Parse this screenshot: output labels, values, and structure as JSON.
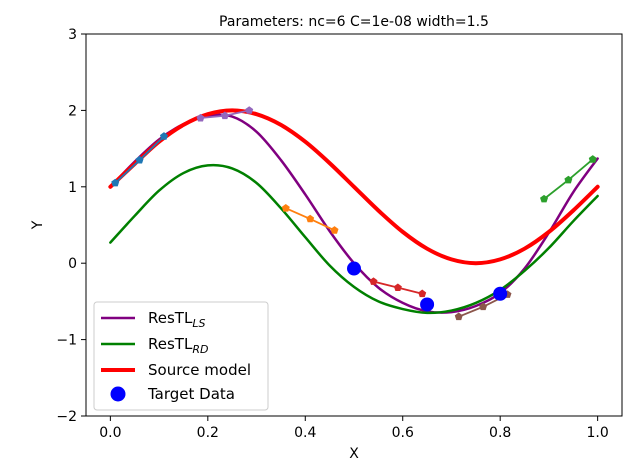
{
  "chart_data": {
    "type": "line",
    "title": "Parameters: nc=6 C=1e-08 width=1.5",
    "xlabel": "X",
    "ylabel": "Y",
    "xlim": [
      -0.05,
      1.05
    ],
    "ylim": [
      -2,
      3
    ],
    "xticks": [
      0.0,
      0.2,
      0.4,
      0.6,
      0.8,
      1.0
    ],
    "xtick_labels": [
      "0.0",
      "0.2",
      "0.4",
      "0.6",
      "0.8",
      "1.0"
    ],
    "yticks": [
      -2,
      -1,
      0,
      1,
      2,
      3
    ],
    "ytick_labels": [
      "−2",
      "−1",
      "0",
      "1",
      "2",
      "3"
    ],
    "legend_position": "lower-left",
    "series": [
      {
        "name": "ResTL_LS",
        "legend_main": "ResTL",
        "legend_sub": "LS",
        "color": "#800080",
        "x": [
          0.0,
          0.05,
          0.1,
          0.15,
          0.2,
          0.25,
          0.3,
          0.35,
          0.4,
          0.45,
          0.5,
          0.55,
          0.6,
          0.65,
          0.7,
          0.75,
          0.8,
          0.85,
          0.9,
          0.95,
          1.0
        ],
        "y": [
          1.0,
          1.33,
          1.62,
          1.82,
          1.93,
          1.92,
          1.72,
          1.35,
          0.9,
          0.42,
          0.0,
          -0.32,
          -0.52,
          -0.63,
          -0.64,
          -0.56,
          -0.39,
          -0.07,
          0.4,
          0.93,
          1.37
        ]
      },
      {
        "name": "ResTL_RD",
        "legend_main": "ResTL",
        "legend_sub": "RD",
        "color": "#008000",
        "x": [
          0.0,
          0.05,
          0.1,
          0.15,
          0.2,
          0.25,
          0.3,
          0.35,
          0.4,
          0.45,
          0.5,
          0.55,
          0.6,
          0.65,
          0.7,
          0.75,
          0.8,
          0.85,
          0.9,
          0.95,
          1.0
        ],
        "y": [
          0.27,
          0.62,
          0.95,
          1.18,
          1.28,
          1.24,
          1.05,
          0.72,
          0.34,
          -0.03,
          -0.31,
          -0.5,
          -0.6,
          -0.65,
          -0.62,
          -0.52,
          -0.35,
          -0.1,
          0.2,
          0.55,
          0.88
        ]
      },
      {
        "name": "Source model",
        "legend_main": "Source model",
        "legend_sub": "",
        "color": "#ff0000",
        "x": [
          0.0,
          0.05,
          0.1,
          0.15,
          0.2,
          0.25,
          0.3,
          0.35,
          0.4,
          0.45,
          0.5,
          0.55,
          0.6,
          0.65,
          0.7,
          0.75,
          0.8,
          0.85,
          0.9,
          0.95,
          1.0
        ],
        "y": [
          1.0,
          1.3,
          1.59,
          1.81,
          1.95,
          2.0,
          1.95,
          1.81,
          1.59,
          1.31,
          1.0,
          0.69,
          0.41,
          0.19,
          0.05,
          0.0,
          0.05,
          0.19,
          0.41,
          0.69,
          1.0
        ]
      }
    ],
    "target_data": {
      "name": "Target Data",
      "color": "#0000ff",
      "x": [
        0.5,
        0.65,
        0.8
      ],
      "y": [
        -0.07,
        -0.54,
        -0.4
      ]
    },
    "segments": [
      {
        "color": "#1f77b4",
        "x": [
          0.01,
          0.06,
          0.11
        ],
        "y": [
          1.05,
          1.35,
          1.66
        ]
      },
      {
        "color": "#9467bd",
        "x": [
          0.185,
          0.235,
          0.285
        ],
        "y": [
          1.9,
          1.93,
          2.0
        ]
      },
      {
        "color": "#ff7f0e",
        "x": [
          0.36,
          0.41,
          0.46
        ],
        "y": [
          0.72,
          0.58,
          0.43
        ]
      },
      {
        "color": "#d62728",
        "x": [
          0.54,
          0.59,
          0.64
        ],
        "y": [
          -0.24,
          -0.32,
          -0.4
        ]
      },
      {
        "color": "#8c564b",
        "x": [
          0.715,
          0.765,
          0.815
        ],
        "y": [
          -0.7,
          -0.57,
          -0.41
        ]
      },
      {
        "color": "#2ca02c",
        "x": [
          0.89,
          0.94,
          0.99
        ],
        "y": [
          0.84,
          1.09,
          1.36
        ]
      }
    ]
  }
}
